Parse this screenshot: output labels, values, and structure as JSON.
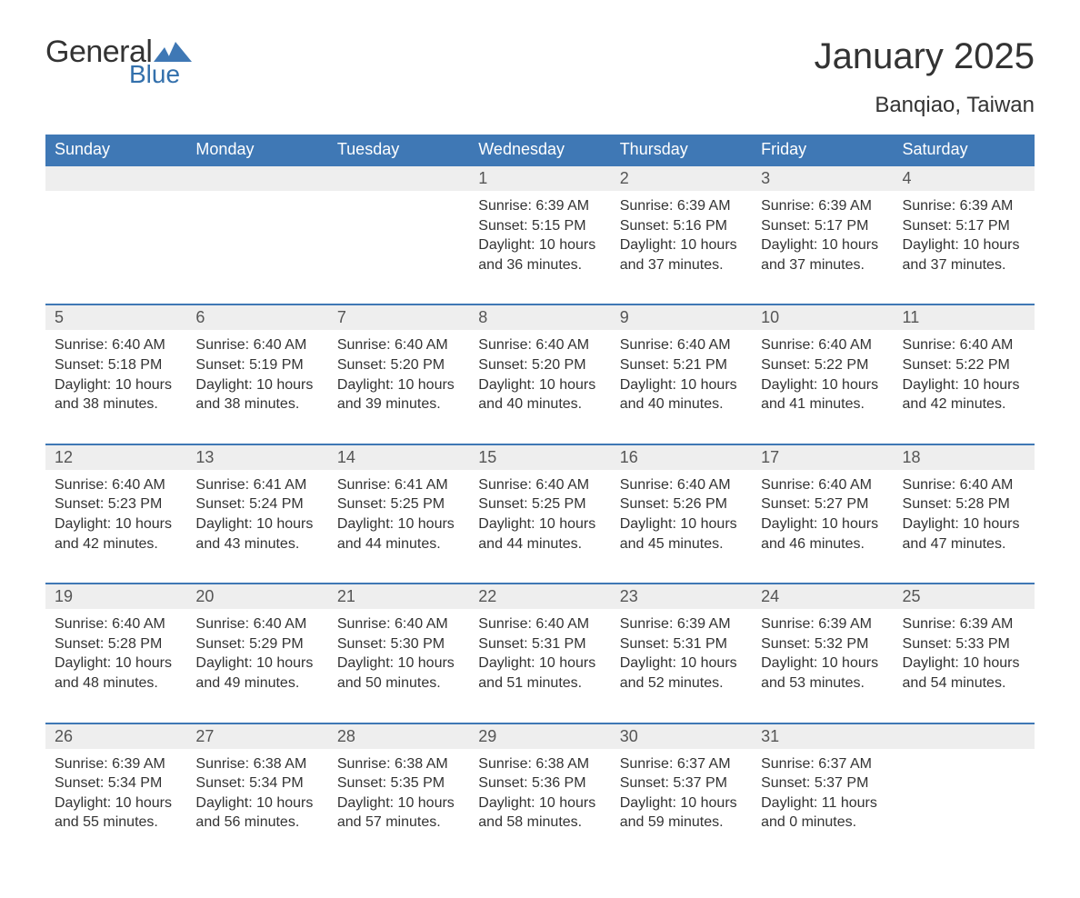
{
  "logo": {
    "text1": "General",
    "text2": "Blue"
  },
  "title": "January 2025",
  "subtitle": "Banqiao, Taiwan",
  "colors": {
    "header_bg": "#3f78b5",
    "header_text": "#ffffff",
    "daynum_bg": "#eeeeee",
    "row_border": "#3f78b5",
    "body_text": "#333333",
    "logo_blue": "#3370ac"
  },
  "day_headers": [
    "Sunday",
    "Monday",
    "Tuesday",
    "Wednesday",
    "Thursday",
    "Friday",
    "Saturday"
  ],
  "weeks": [
    {
      "nums": [
        "",
        "",
        "",
        "1",
        "2",
        "3",
        "4"
      ],
      "cells": [
        null,
        null,
        null,
        {
          "sunrise": "6:39 AM",
          "sunset": "5:15 PM",
          "daylight": "10 hours and 36 minutes."
        },
        {
          "sunrise": "6:39 AM",
          "sunset": "5:16 PM",
          "daylight": "10 hours and 37 minutes."
        },
        {
          "sunrise": "6:39 AM",
          "sunset": "5:17 PM",
          "daylight": "10 hours and 37 minutes."
        },
        {
          "sunrise": "6:39 AM",
          "sunset": "5:17 PM",
          "daylight": "10 hours and 37 minutes."
        }
      ]
    },
    {
      "nums": [
        "5",
        "6",
        "7",
        "8",
        "9",
        "10",
        "11"
      ],
      "cells": [
        {
          "sunrise": "6:40 AM",
          "sunset": "5:18 PM",
          "daylight": "10 hours and 38 minutes."
        },
        {
          "sunrise": "6:40 AM",
          "sunset": "5:19 PM",
          "daylight": "10 hours and 38 minutes."
        },
        {
          "sunrise": "6:40 AM",
          "sunset": "5:20 PM",
          "daylight": "10 hours and 39 minutes."
        },
        {
          "sunrise": "6:40 AM",
          "sunset": "5:20 PM",
          "daylight": "10 hours and 40 minutes."
        },
        {
          "sunrise": "6:40 AM",
          "sunset": "5:21 PM",
          "daylight": "10 hours and 40 minutes."
        },
        {
          "sunrise": "6:40 AM",
          "sunset": "5:22 PM",
          "daylight": "10 hours and 41 minutes."
        },
        {
          "sunrise": "6:40 AM",
          "sunset": "5:22 PM",
          "daylight": "10 hours and 42 minutes."
        }
      ]
    },
    {
      "nums": [
        "12",
        "13",
        "14",
        "15",
        "16",
        "17",
        "18"
      ],
      "cells": [
        {
          "sunrise": "6:40 AM",
          "sunset": "5:23 PM",
          "daylight": "10 hours and 42 minutes."
        },
        {
          "sunrise": "6:41 AM",
          "sunset": "5:24 PM",
          "daylight": "10 hours and 43 minutes."
        },
        {
          "sunrise": "6:41 AM",
          "sunset": "5:25 PM",
          "daylight": "10 hours and 44 minutes."
        },
        {
          "sunrise": "6:40 AM",
          "sunset": "5:25 PM",
          "daylight": "10 hours and 44 minutes."
        },
        {
          "sunrise": "6:40 AM",
          "sunset": "5:26 PM",
          "daylight": "10 hours and 45 minutes."
        },
        {
          "sunrise": "6:40 AM",
          "sunset": "5:27 PM",
          "daylight": "10 hours and 46 minutes."
        },
        {
          "sunrise": "6:40 AM",
          "sunset": "5:28 PM",
          "daylight": "10 hours and 47 minutes."
        }
      ]
    },
    {
      "nums": [
        "19",
        "20",
        "21",
        "22",
        "23",
        "24",
        "25"
      ],
      "cells": [
        {
          "sunrise": "6:40 AM",
          "sunset": "5:28 PM",
          "daylight": "10 hours and 48 minutes."
        },
        {
          "sunrise": "6:40 AM",
          "sunset": "5:29 PM",
          "daylight": "10 hours and 49 minutes."
        },
        {
          "sunrise": "6:40 AM",
          "sunset": "5:30 PM",
          "daylight": "10 hours and 50 minutes."
        },
        {
          "sunrise": "6:40 AM",
          "sunset": "5:31 PM",
          "daylight": "10 hours and 51 minutes."
        },
        {
          "sunrise": "6:39 AM",
          "sunset": "5:31 PM",
          "daylight": "10 hours and 52 minutes."
        },
        {
          "sunrise": "6:39 AM",
          "sunset": "5:32 PM",
          "daylight": "10 hours and 53 minutes."
        },
        {
          "sunrise": "6:39 AM",
          "sunset": "5:33 PM",
          "daylight": "10 hours and 54 minutes."
        }
      ]
    },
    {
      "nums": [
        "26",
        "27",
        "28",
        "29",
        "30",
        "31",
        ""
      ],
      "cells": [
        {
          "sunrise": "6:39 AM",
          "sunset": "5:34 PM",
          "daylight": "10 hours and 55 minutes."
        },
        {
          "sunrise": "6:38 AM",
          "sunset": "5:34 PM",
          "daylight": "10 hours and 56 minutes."
        },
        {
          "sunrise": "6:38 AM",
          "sunset": "5:35 PM",
          "daylight": "10 hours and 57 minutes."
        },
        {
          "sunrise": "6:38 AM",
          "sunset": "5:36 PM",
          "daylight": "10 hours and 58 minutes."
        },
        {
          "sunrise": "6:37 AM",
          "sunset": "5:37 PM",
          "daylight": "10 hours and 59 minutes."
        },
        {
          "sunrise": "6:37 AM",
          "sunset": "5:37 PM",
          "daylight": "11 hours and 0 minutes."
        },
        null
      ]
    }
  ],
  "labels": {
    "sunrise": "Sunrise: ",
    "sunset": "Sunset: ",
    "daylight": "Daylight: "
  }
}
